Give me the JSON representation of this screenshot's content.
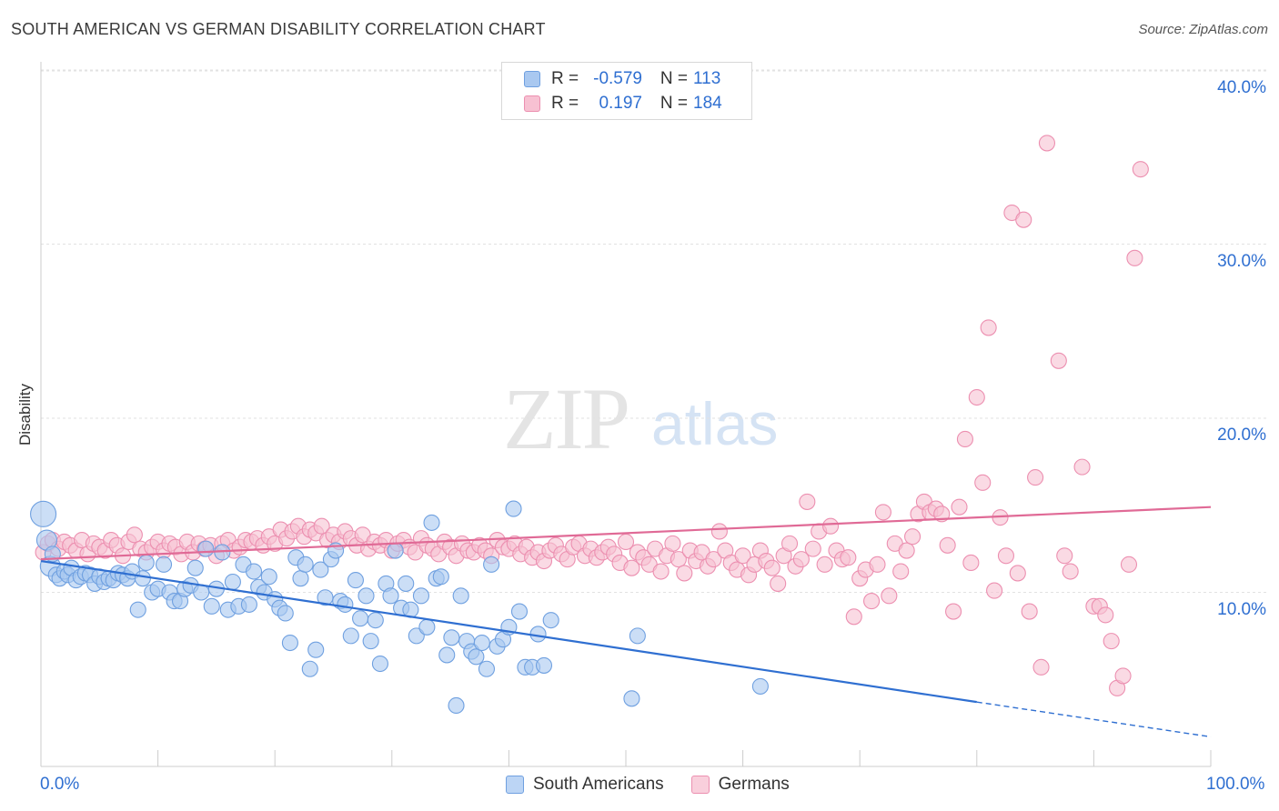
{
  "header": {
    "title": "SOUTH AMERICAN VS GERMAN DISABILITY CORRELATION CHART",
    "source": "Source: ZipAtlas.com"
  },
  "watermark": {
    "zip": "ZIP",
    "atlas": "atlas"
  },
  "legend": {
    "rows": [
      {
        "r_label": "R =",
        "r_value": "-0.579",
        "n_label": "N =",
        "n_value": "113",
        "color": "#a9c8f0",
        "border": "#6fa0e0"
      },
      {
        "r_label": "R =",
        "r_value": "0.197",
        "n_label": "N =",
        "n_value": "184",
        "color": "#f7c1d2",
        "border": "#ec8fb0"
      }
    ]
  },
  "bottom_legend": {
    "items": [
      {
        "label": "South Americans",
        "color": "#bcd5f5",
        "border": "#6fa0e0"
      },
      {
        "label": "Germans",
        "color": "#f9cfdc",
        "border": "#ec8fb0"
      }
    ]
  },
  "colors": {
    "blue": "#2f6fd1",
    "pink": "#e06a96",
    "grid": "#e2e2e2"
  },
  "chart_data": {
    "type": "scatter",
    "title": "SOUTH AMERICAN VS GERMAN DISABILITY CORRELATION CHART",
    "xlabel": "",
    "ylabel": "Disability",
    "xlim": [
      0,
      100
    ],
    "ylim": [
      0,
      42
    ],
    "x_ticks": [
      "0.0%",
      "100.0%"
    ],
    "y_ticks": [
      {
        "value": 10,
        "label": "10.0%"
      },
      {
        "value": 20,
        "label": "20.0%"
      },
      {
        "value": 30,
        "label": "30.0%"
      },
      {
        "value": 40,
        "label": "40.0%"
      }
    ],
    "grid": true,
    "legend_position": "top-center",
    "series": [
      {
        "name": "South Americans",
        "color": "#6fa0e0",
        "fill": "#a9c8f0",
        "trend": {
          "x": [
            0,
            80
          ],
          "y": [
            11.8,
            3.7
          ],
          "dashed_to": [
            100,
            1.7
          ]
        },
        "points": [
          [
            0.2,
            14.5
          ],
          [
            0.5,
            13.0
          ],
          [
            0.8,
            11.5
          ],
          [
            1.0,
            12.2
          ],
          [
            1.3,
            11.0
          ],
          [
            1.6,
            10.8
          ],
          [
            2.0,
            11.2
          ],
          [
            2.3,
            11.0
          ],
          [
            2.6,
            11.4
          ],
          [
            3.0,
            10.7
          ],
          [
            3.4,
            10.9
          ],
          [
            3.8,
            11.1
          ],
          [
            4.2,
            11.0
          ],
          [
            4.6,
            10.5
          ],
          [
            5.0,
            10.9
          ],
          [
            5.4,
            10.6
          ],
          [
            5.8,
            10.8
          ],
          [
            6.2,
            10.7
          ],
          [
            6.6,
            11.1
          ],
          [
            7.0,
            11.0
          ],
          [
            7.4,
            10.8
          ],
          [
            7.8,
            11.2
          ],
          [
            8.3,
            9.0
          ],
          [
            8.7,
            10.8
          ],
          [
            9.0,
            11.7
          ],
          [
            9.5,
            10.0
          ],
          [
            10.0,
            10.2
          ],
          [
            10.5,
            11.6
          ],
          [
            11.0,
            10.0
          ],
          [
            11.4,
            9.5
          ],
          [
            11.9,
            9.5
          ],
          [
            12.3,
            10.2
          ],
          [
            12.8,
            10.4
          ],
          [
            13.2,
            11.4
          ],
          [
            13.7,
            10.0
          ],
          [
            14.1,
            12.5
          ],
          [
            14.6,
            9.2
          ],
          [
            15.0,
            10.2
          ],
          [
            15.5,
            12.3
          ],
          [
            16.0,
            9.0
          ],
          [
            16.4,
            10.6
          ],
          [
            16.9,
            9.2
          ],
          [
            17.3,
            11.6
          ],
          [
            17.8,
            9.3
          ],
          [
            18.2,
            11.2
          ],
          [
            18.6,
            10.3
          ],
          [
            19.1,
            10.0
          ],
          [
            19.5,
            10.9
          ],
          [
            20.0,
            9.6
          ],
          [
            20.4,
            9.1
          ],
          [
            20.9,
            8.8
          ],
          [
            21.3,
            7.1
          ],
          [
            21.8,
            12.0
          ],
          [
            22.2,
            10.8
          ],
          [
            22.6,
            11.6
          ],
          [
            23.0,
            5.6
          ],
          [
            23.5,
            6.7
          ],
          [
            23.9,
            11.3
          ],
          [
            24.3,
            9.7
          ],
          [
            24.8,
            11.9
          ],
          [
            25.2,
            12.4
          ],
          [
            25.6,
            9.5
          ],
          [
            26.0,
            9.3
          ],
          [
            26.5,
            7.5
          ],
          [
            26.9,
            10.7
          ],
          [
            27.3,
            8.5
          ],
          [
            27.8,
            9.8
          ],
          [
            28.2,
            7.2
          ],
          [
            28.6,
            8.4
          ],
          [
            29.0,
            5.9
          ],
          [
            29.5,
            10.5
          ],
          [
            29.9,
            9.8
          ],
          [
            30.3,
            12.4
          ],
          [
            30.8,
            9.1
          ],
          [
            31.2,
            10.5
          ],
          [
            31.6,
            9.0
          ],
          [
            32.1,
            7.5
          ],
          [
            32.5,
            9.8
          ],
          [
            33.0,
            8.0
          ],
          [
            33.4,
            14.0
          ],
          [
            33.8,
            10.8
          ],
          [
            34.2,
            10.9
          ],
          [
            34.7,
            6.4
          ],
          [
            35.1,
            7.4
          ],
          [
            35.5,
            3.5
          ],
          [
            35.9,
            9.8
          ],
          [
            36.4,
            7.2
          ],
          [
            36.8,
            6.6
          ],
          [
            37.2,
            6.3
          ],
          [
            37.7,
            7.1
          ],
          [
            38.1,
            5.6
          ],
          [
            38.5,
            11.6
          ],
          [
            39.0,
            6.9
          ],
          [
            39.5,
            7.3
          ],
          [
            40.0,
            8.0
          ],
          [
            40.4,
            14.8
          ],
          [
            40.9,
            8.9
          ],
          [
            41.4,
            5.7
          ],
          [
            42.0,
            5.7
          ],
          [
            42.5,
            7.6
          ],
          [
            43.0,
            5.8
          ],
          [
            43.6,
            8.4
          ],
          [
            50.5,
            3.9
          ],
          [
            51.0,
            7.5
          ],
          [
            61.5,
            4.6
          ]
        ]
      },
      {
        "name": "Germans",
        "color": "#ec8fb0",
        "fill": "#f7c1d2",
        "trend": {
          "x": [
            0,
            100
          ],
          "y": [
            11.9,
            14.9
          ]
        },
        "points": [
          [
            0.2,
            12.3
          ],
          [
            0.6,
            12.8
          ],
          [
            1.0,
            13.0
          ],
          [
            1.5,
            12.5
          ],
          [
            2.0,
            12.9
          ],
          [
            2.5,
            12.7
          ],
          [
            3.0,
            12.4
          ],
          [
            3.5,
            13.0
          ],
          [
            4.0,
            12.2
          ],
          [
            4.5,
            12.8
          ],
          [
            5.0,
            12.6
          ],
          [
            5.5,
            12.4
          ],
          [
            6.0,
            13.0
          ],
          [
            6.5,
            12.7
          ],
          [
            7.0,
            12.1
          ],
          [
            7.5,
            12.9
          ],
          [
            8.0,
            13.3
          ],
          [
            8.5,
            12.5
          ],
          [
            9.0,
            12.3
          ],
          [
            9.5,
            12.6
          ],
          [
            10.0,
            12.9
          ],
          [
            10.5,
            12.4
          ],
          [
            11.0,
            12.8
          ],
          [
            11.5,
            12.6
          ],
          [
            12.0,
            12.2
          ],
          [
            12.5,
            12.9
          ],
          [
            13.0,
            12.3
          ],
          [
            13.5,
            12.8
          ],
          [
            14.0,
            12.5
          ],
          [
            14.5,
            12.7
          ],
          [
            15.0,
            12.1
          ],
          [
            15.5,
            12.8
          ],
          [
            16.0,
            13.0
          ],
          [
            16.5,
            12.4
          ],
          [
            17.0,
            12.6
          ],
          [
            17.5,
            13.0
          ],
          [
            18.0,
            12.9
          ],
          [
            18.5,
            13.1
          ],
          [
            19.0,
            12.7
          ],
          [
            19.5,
            13.2
          ],
          [
            20.0,
            12.8
          ],
          [
            20.5,
            13.6
          ],
          [
            21.0,
            13.1
          ],
          [
            21.5,
            13.5
          ],
          [
            22.0,
            13.8
          ],
          [
            22.5,
            13.2
          ],
          [
            23.0,
            13.6
          ],
          [
            23.5,
            13.4
          ],
          [
            24.0,
            13.8
          ],
          [
            24.5,
            13.0
          ],
          [
            25.0,
            13.3
          ],
          [
            25.5,
            12.9
          ],
          [
            26.0,
            13.5
          ],
          [
            26.5,
            13.1
          ],
          [
            27.0,
            12.7
          ],
          [
            27.5,
            13.3
          ],
          [
            28.0,
            12.5
          ],
          [
            28.5,
            12.9
          ],
          [
            29.0,
            12.7
          ],
          [
            29.5,
            13.0
          ],
          [
            30.0,
            12.4
          ],
          [
            30.5,
            12.8
          ],
          [
            31.0,
            13.0
          ],
          [
            31.5,
            12.6
          ],
          [
            32.0,
            12.3
          ],
          [
            32.5,
            13.1
          ],
          [
            33.0,
            12.7
          ],
          [
            33.5,
            12.5
          ],
          [
            34.0,
            12.2
          ],
          [
            34.5,
            12.9
          ],
          [
            35.0,
            12.6
          ],
          [
            35.5,
            12.1
          ],
          [
            36.0,
            12.8
          ],
          [
            36.5,
            12.4
          ],
          [
            37.0,
            12.3
          ],
          [
            37.5,
            12.7
          ],
          [
            38.0,
            12.4
          ],
          [
            38.5,
            12.1
          ],
          [
            39.0,
            13.0
          ],
          [
            39.5,
            12.6
          ],
          [
            40.0,
            12.5
          ],
          [
            40.5,
            12.8
          ],
          [
            41.0,
            12.2
          ],
          [
            41.5,
            12.6
          ],
          [
            42.0,
            12.0
          ],
          [
            42.5,
            12.3
          ],
          [
            43.0,
            11.8
          ],
          [
            43.5,
            12.4
          ],
          [
            44.0,
            12.7
          ],
          [
            44.5,
            12.2
          ],
          [
            45.0,
            11.9
          ],
          [
            45.5,
            12.6
          ],
          [
            46.0,
            12.8
          ],
          [
            46.5,
            12.1
          ],
          [
            47.0,
            12.5
          ],
          [
            47.5,
            12.0
          ],
          [
            48.0,
            12.3
          ],
          [
            48.5,
            12.6
          ],
          [
            49.0,
            12.2
          ],
          [
            49.5,
            11.7
          ],
          [
            50.0,
            12.9
          ],
          [
            50.5,
            11.4
          ],
          [
            51.0,
            12.3
          ],
          [
            51.5,
            12.0
          ],
          [
            52.0,
            11.6
          ],
          [
            52.5,
            12.5
          ],
          [
            53.0,
            11.2
          ],
          [
            53.5,
            12.1
          ],
          [
            54.0,
            12.8
          ],
          [
            54.5,
            11.9
          ],
          [
            55.0,
            11.1
          ],
          [
            55.5,
            12.4
          ],
          [
            56.0,
            11.8
          ],
          [
            56.5,
            12.3
          ],
          [
            57.0,
            11.5
          ],
          [
            57.5,
            11.9
          ],
          [
            58.0,
            13.5
          ],
          [
            58.5,
            12.4
          ],
          [
            59.0,
            11.7
          ],
          [
            59.5,
            11.3
          ],
          [
            60.0,
            12.1
          ],
          [
            60.5,
            11.0
          ],
          [
            61.0,
            11.6
          ],
          [
            61.5,
            12.4
          ],
          [
            62.0,
            11.8
          ],
          [
            62.5,
            11.4
          ],
          [
            63.0,
            10.5
          ],
          [
            63.5,
            12.1
          ],
          [
            64.0,
            12.8
          ],
          [
            64.5,
            11.5
          ],
          [
            65.0,
            11.9
          ],
          [
            65.5,
            15.2
          ],
          [
            66.0,
            12.5
          ],
          [
            66.5,
            13.5
          ],
          [
            67.0,
            11.6
          ],
          [
            67.5,
            13.8
          ],
          [
            68.0,
            12.4
          ],
          [
            68.5,
            11.9
          ],
          [
            69.0,
            12.0
          ],
          [
            69.5,
            8.6
          ],
          [
            70.0,
            10.8
          ],
          [
            70.5,
            11.3
          ],
          [
            71.0,
            9.5
          ],
          [
            71.5,
            11.6
          ],
          [
            72.0,
            14.6
          ],
          [
            72.5,
            9.8
          ],
          [
            73.0,
            12.8
          ],
          [
            73.5,
            11.2
          ],
          [
            74.0,
            12.4
          ],
          [
            74.5,
            13.2
          ],
          [
            75.0,
            14.5
          ],
          [
            75.5,
            15.2
          ],
          [
            76.0,
            14.6
          ],
          [
            76.5,
            14.8
          ],
          [
            77.0,
            14.5
          ],
          [
            77.5,
            12.7
          ],
          [
            78.0,
            8.9
          ],
          [
            78.5,
            14.9
          ],
          [
            79.0,
            18.8
          ],
          [
            79.5,
            11.7
          ],
          [
            80.0,
            21.2
          ],
          [
            80.5,
            16.3
          ],
          [
            81.0,
            25.2
          ],
          [
            81.5,
            10.1
          ],
          [
            82.0,
            14.3
          ],
          [
            82.5,
            12.1
          ],
          [
            83.0,
            31.8
          ],
          [
            83.5,
            11.1
          ],
          [
            84.0,
            31.4
          ],
          [
            84.5,
            8.9
          ],
          [
            85.0,
            16.6
          ],
          [
            85.5,
            5.7
          ],
          [
            86.0,
            35.8
          ],
          [
            87.0,
            23.3
          ],
          [
            87.5,
            12.1
          ],
          [
            88.0,
            11.2
          ],
          [
            89.0,
            17.2
          ],
          [
            90.0,
            9.2
          ],
          [
            90.5,
            9.2
          ],
          [
            91.0,
            8.7
          ],
          [
            91.5,
            7.2
          ],
          [
            92.0,
            4.5
          ],
          [
            92.5,
            5.2
          ],
          [
            93.0,
            11.6
          ],
          [
            93.5,
            29.2
          ],
          [
            94.0,
            34.3
          ]
        ]
      }
    ]
  }
}
